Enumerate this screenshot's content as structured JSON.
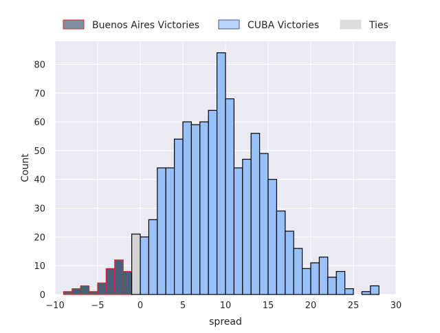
{
  "chart_data": {
    "type": "bar",
    "xlabel": "spread",
    "ylabel": "Count",
    "xlim": [
      -10,
      30
    ],
    "ylim": [
      0,
      88
    ],
    "grid": true,
    "legend_position": "top",
    "x_ticks": [
      -10,
      -5,
      0,
      5,
      10,
      15,
      20,
      25,
      30
    ],
    "x_tick_labels": [
      "−10",
      "−5",
      "0",
      "5",
      "10",
      "15",
      "20",
      "25",
      "30"
    ],
    "y_ticks": [
      0,
      10,
      20,
      30,
      40,
      50,
      60,
      70,
      80
    ],
    "bin_width": 1,
    "series": [
      {
        "name": "Buenos Aires Victories",
        "face_color": "#4a6078",
        "edge_color": "#d62728",
        "bins": [
          {
            "x0": -9,
            "count": 1
          },
          {
            "x0": -8,
            "count": 2
          },
          {
            "x0": -7,
            "count": 3
          },
          {
            "x0": -6,
            "count": 1
          },
          {
            "x0": -5,
            "count": 4
          },
          {
            "x0": -4,
            "count": 9
          },
          {
            "x0": -3,
            "count": 12
          },
          {
            "x0": -2,
            "count": 8
          }
        ]
      },
      {
        "name": "CUBA Victories",
        "face_color": "#97c1f8",
        "edge_color": "#000000",
        "bins": [
          {
            "x0": 0,
            "count": 20
          },
          {
            "x0": 1,
            "count": 26
          },
          {
            "x0": 2,
            "count": 44
          },
          {
            "x0": 3,
            "count": 44
          },
          {
            "x0": 4,
            "count": 54
          },
          {
            "x0": 5,
            "count": 60
          },
          {
            "x0": 6,
            "count": 59
          },
          {
            "x0": 7,
            "count": 60
          },
          {
            "x0": 8,
            "count": 64
          },
          {
            "x0": 9,
            "count": 84
          },
          {
            "x0": 10,
            "count": 68
          },
          {
            "x0": 11,
            "count": 44
          },
          {
            "x0": 12,
            "count": 47
          },
          {
            "x0": 13,
            "count": 56
          },
          {
            "x0": 14,
            "count": 49
          },
          {
            "x0": 15,
            "count": 40
          },
          {
            "x0": 16,
            "count": 29
          },
          {
            "x0": 17,
            "count": 22
          },
          {
            "x0": 18,
            "count": 16
          },
          {
            "x0": 19,
            "count": 9
          },
          {
            "x0": 20,
            "count": 11
          },
          {
            "x0": 21,
            "count": 13
          },
          {
            "x0": 22,
            "count": 6
          },
          {
            "x0": 23,
            "count": 8
          },
          {
            "x0": 24,
            "count": 2
          },
          {
            "x0": 26,
            "count": 1
          },
          {
            "x0": 27,
            "count": 3
          }
        ]
      },
      {
        "name": "Ties",
        "face_color": "#d3d3d3",
        "edge_color": "#000000",
        "bins": [
          {
            "x0": -1,
            "count": 21
          }
        ]
      }
    ],
    "legend": [
      {
        "label": "Buenos Aires Victories",
        "face_color": "#7f8ea0",
        "edge_color": "#d62728"
      },
      {
        "label": "CUBA Victories",
        "face_color": "#b6d4fb",
        "edge_color": "#4a5a78"
      },
      {
        "label": "Ties",
        "face_color": "#dcdcdc",
        "edge_color": "#dcdcdc"
      }
    ]
  }
}
